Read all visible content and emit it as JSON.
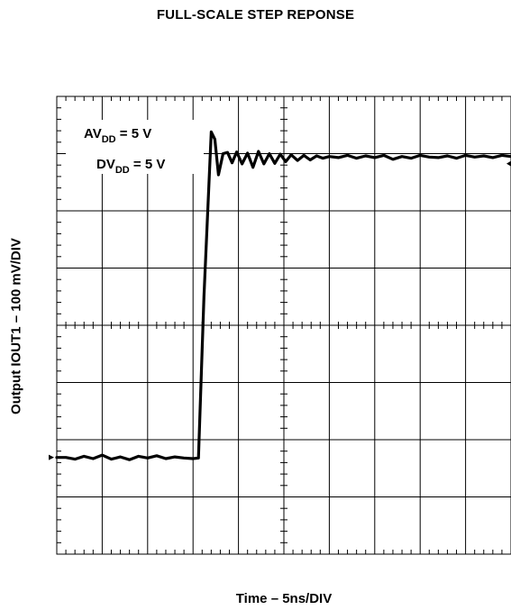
{
  "chart_data": {
    "type": "line",
    "title": "FULL-SCALE STEP REPONSE",
    "xlabel": "Time – 5ns/DIV",
    "ylabel": "Output IOUT1 – 100 mV/DIV",
    "grid": true,
    "x_divisions": 10,
    "y_divisions": 8,
    "x_units": "ns",
    "y_units": "mV",
    "xlim": [
      0,
      50
    ],
    "ylim": [
      0,
      800
    ],
    "annotations": [
      {
        "main": "AV",
        "sub": "DD",
        "rest": " = 5 V"
      },
      {
        "main": "DV",
        "sub": "DD",
        "rest": " = 5 V"
      }
    ],
    "series": [
      {
        "x": [
          0,
          1,
          2,
          3,
          4,
          5,
          6,
          7,
          8,
          9,
          10,
          11,
          12,
          13,
          14,
          15,
          15.6,
          16.2,
          17,
          17.4,
          17.8,
          18.3,
          18.8,
          19.3,
          19.8,
          20.4,
          21,
          21.6,
          22.2,
          22.8,
          23.4,
          24,
          24.6,
          25.2,
          25.8,
          26.5,
          27.2,
          27.9,
          28.6,
          29.3,
          30,
          31,
          32,
          33,
          34,
          35,
          36,
          37,
          38,
          39,
          40,
          41,
          42,
          43,
          44,
          45,
          46,
          47,
          48,
          49,
          50
        ],
        "y": [
          169,
          169,
          166,
          171,
          167,
          173,
          166,
          170,
          165,
          171,
          168,
          172,
          167,
          170,
          168,
          167,
          168,
          450,
          738,
          725,
          663,
          700,
          702,
          684,
          703,
          682,
          701,
          676,
          704,
          682,
          700,
          683,
          699,
          686,
          698,
          688,
          697,
          689,
          696,
          692,
          695,
          693,
          697,
          692,
          696,
          693,
          697,
          690,
          695,
          692,
          697,
          694,
          693,
          696,
          692,
          697,
          694,
          696,
          693,
          697,
          695
        ]
      }
    ]
  }
}
